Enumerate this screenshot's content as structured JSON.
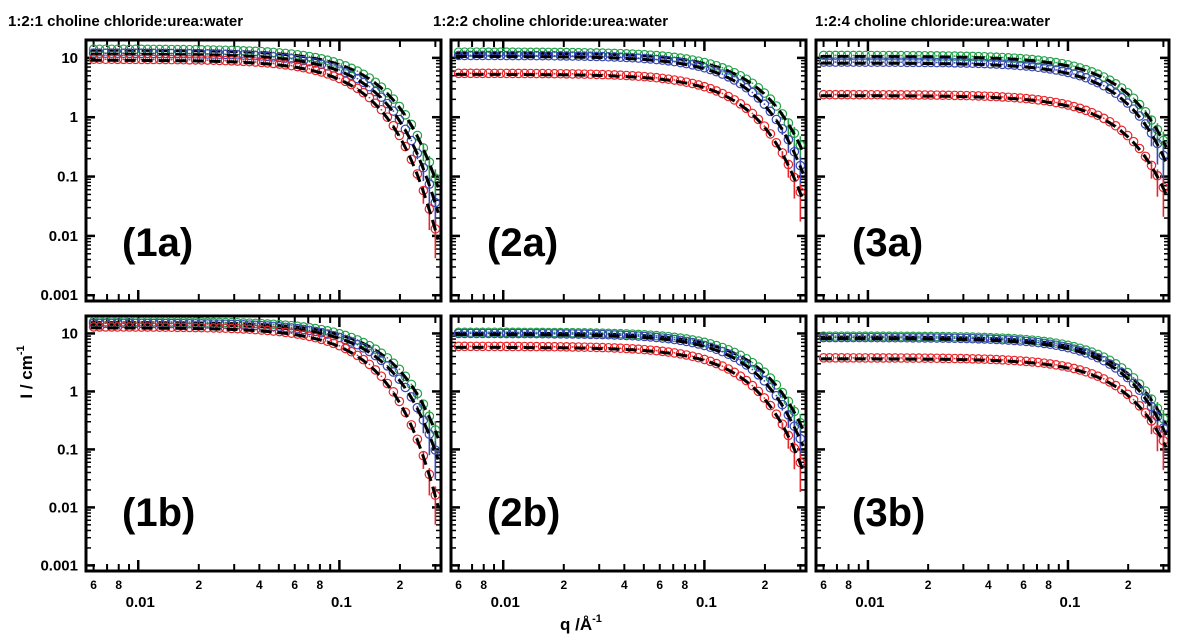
{
  "figure": {
    "column_titles": [
      "1:2:1 choline chloride:urea:water",
      "1:2:2 choline chloride:urea:water",
      "1:2:4 choline chloride:urea:water"
    ],
    "ylabel_main": "I / cm",
    "ylabel_sup": "-1",
    "xlabel_main": "q /Å",
    "xlabel_sup": "-1",
    "y_tick_labels": [
      "10",
      "1",
      "0.1",
      "0.01",
      "0.001"
    ],
    "x_major_labels": [
      "0.01",
      "0.1"
    ],
    "x_minor_labels": [
      "6",
      "8",
      "2",
      "4",
      "6",
      "8",
      "2"
    ],
    "colors": {
      "red": "#e8262a",
      "blue": "#3a49b3",
      "green": "#23a04a",
      "fit": "#000000"
    }
  },
  "chart_data": [
    {
      "type": "scatter",
      "panel": "(1a)",
      "column": 0,
      "row": 0,
      "xscale": "log",
      "yscale": "log",
      "xlim": [
        0.0055,
        0.32
      ],
      "ylim": [
        0.0008,
        20
      ],
      "series": [
        {
          "color": "green",
          "I0": 14,
          "Rg": 13,
          "tail": 0.006
        },
        {
          "color": "blue",
          "I0": 12,
          "Rg": 14,
          "tail": 0.003
        },
        {
          "color": "red",
          "I0": 9.5,
          "Rg": 15,
          "tail": 0.002
        }
      ]
    },
    {
      "type": "scatter",
      "panel": "(2a)",
      "column": 1,
      "row": 0,
      "xscale": "log",
      "yscale": "log",
      "xlim": [
        0.0055,
        0.32
      ],
      "ylim": [
        0.0008,
        20
      ],
      "series": [
        {
          "color": "green",
          "I0": 12.5,
          "Rg": 11,
          "tail": 0.008
        },
        {
          "color": "blue",
          "I0": 11,
          "Rg": 12,
          "tail": 0.007
        },
        {
          "color": "red",
          "I0": 5.5,
          "Rg": 12.5,
          "tail": 0.004
        }
      ]
    },
    {
      "type": "scatter",
      "panel": "(3a)",
      "column": 2,
      "row": 0,
      "xscale": "log",
      "yscale": "log",
      "xlim": [
        0.0055,
        0.32
      ],
      "ylim": [
        0.0008,
        20
      ],
      "series": [
        {
          "color": "green",
          "I0": 11,
          "Rg": 10.5,
          "tail": 0.004
        },
        {
          "color": "blue",
          "I0": 8.5,
          "Rg": 11,
          "tail": 0.002
        },
        {
          "color": "red",
          "I0": 2.4,
          "Rg": 11,
          "tail": 0.002
        }
      ]
    },
    {
      "type": "scatter",
      "panel": "(1b)",
      "column": 0,
      "row": 1,
      "xscale": "log",
      "yscale": "log",
      "xlim": [
        0.0055,
        0.32
      ],
      "ylim": [
        0.0008,
        20
      ],
      "series": [
        {
          "color": "green",
          "I0": 16,
          "Rg": 12,
          "tail": 0.004
        },
        {
          "color": "blue",
          "I0": 15,
          "Rg": 13,
          "tail": 0.003
        },
        {
          "color": "red",
          "I0": 13,
          "Rg": 15,
          "tail": 0.001
        }
      ]
    },
    {
      "type": "scatter",
      "panel": "(2b)",
      "column": 1,
      "row": 1,
      "xscale": "log",
      "yscale": "log",
      "xlim": [
        0.0055,
        0.32
      ],
      "ylim": [
        0.0008,
        20
      ],
      "series": [
        {
          "color": "green",
          "I0": 10.5,
          "Rg": 11,
          "tail": 0.009
        },
        {
          "color": "blue",
          "I0": 10,
          "Rg": 12,
          "tail": 0.02
        },
        {
          "color": "red",
          "I0": 6,
          "Rg": 12.5,
          "tail": 0.004
        }
      ]
    },
    {
      "type": "scatter",
      "panel": "(3b)",
      "column": 2,
      "row": 1,
      "xscale": "log",
      "yscale": "log",
      "xlim": [
        0.0055,
        0.32
      ],
      "ylim": [
        0.0008,
        20
      ],
      "series": [
        {
          "color": "green",
          "I0": 9,
          "Rg": 10.5,
          "tail": 0.009
        },
        {
          "color": "blue",
          "I0": 8.5,
          "Rg": 11,
          "tail": 0.008
        },
        {
          "color": "red",
          "I0": 3.8,
          "Rg": 10.5,
          "tail": 0.002
        }
      ]
    }
  ]
}
